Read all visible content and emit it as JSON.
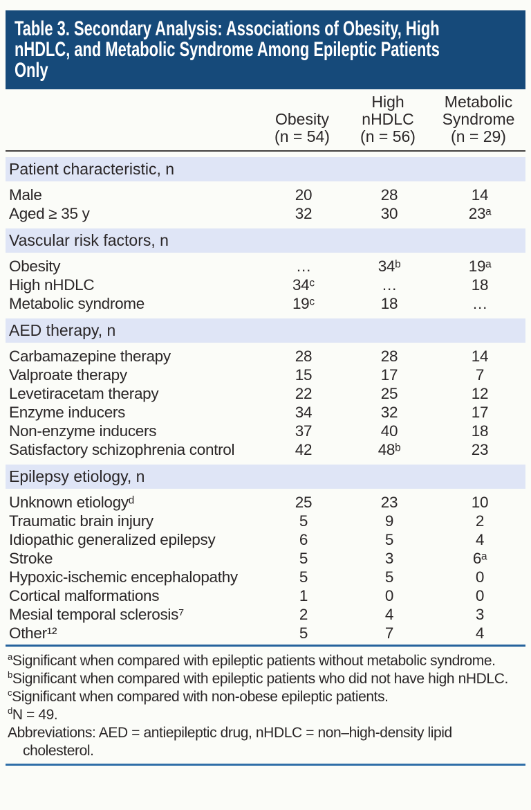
{
  "title_lines": [
    "Table 3. Secondary Analysis: Associations of Obesity, High",
    "nHDLC, and Metabolic Syndrome Among Epileptic Patients",
    "Only"
  ],
  "columns": [
    {
      "label": "Obesity",
      "n": "(n = 54)"
    },
    {
      "label": "High\nnHDLC",
      "n": "(n = 56)"
    },
    {
      "label": "Metabolic\nSyndrome",
      "n": "(n = 29)"
    }
  ],
  "sections": [
    {
      "header": "Patient characteristic, n",
      "rows": [
        {
          "label": "Male",
          "values": [
            "20",
            "28",
            "14"
          ]
        },
        {
          "label": "Aged ≥ 35 y",
          "values": [
            "32",
            "30",
            "23ᵃ"
          ]
        }
      ]
    },
    {
      "header": "Vascular risk factors, n",
      "rows": [
        {
          "label": "Obesity",
          "values": [
            "…",
            "34ᵇ",
            "19ᵃ"
          ]
        },
        {
          "label": "High nHDLC",
          "values": [
            "34ᶜ",
            "…",
            "18"
          ]
        },
        {
          "label": "Metabolic syndrome",
          "values": [
            "19ᶜ",
            "18",
            "…"
          ]
        }
      ]
    },
    {
      "header": "AED therapy, n",
      "rows": [
        {
          "label": "Carbamazepine therapy",
          "values": [
            "28",
            "28",
            "14"
          ]
        },
        {
          "label": "Valproate therapy",
          "values": [
            "15",
            "17",
            "7"
          ]
        },
        {
          "label": "Levetiracetam therapy",
          "values": [
            "22",
            "25",
            "12"
          ]
        },
        {
          "label": "Enzyme inducers",
          "values": [
            "34",
            "32",
            "17"
          ]
        },
        {
          "label": "Non-enzyme inducers",
          "values": [
            "37",
            "40",
            "18"
          ]
        },
        {
          "label": "Satisfactory schizophrenia control",
          "values": [
            "42",
            "48ᵇ",
            "23"
          ]
        }
      ]
    },
    {
      "header": "Epilepsy etiology, n",
      "rows": [
        {
          "label": "Unknown etiologyᵈ",
          "values": [
            "25",
            "23",
            "10"
          ]
        },
        {
          "label": "Traumatic brain injury",
          "values": [
            "5",
            "9",
            "2"
          ]
        },
        {
          "label": "Idiopathic generalized epilepsy",
          "values": [
            "6",
            "5",
            "4"
          ]
        },
        {
          "label": "Stroke",
          "values": [
            "5",
            "3",
            "6ᵃ"
          ]
        },
        {
          "label": "Hypoxic-ischemic encephalopathy",
          "values": [
            "5",
            "5",
            "0"
          ]
        },
        {
          "label": "Cortical malformations",
          "values": [
            "1",
            "0",
            "0"
          ]
        },
        {
          "label": "Mesial temporal sclerosis⁷",
          "values": [
            "2",
            "4",
            "3"
          ]
        },
        {
          "label": "Other¹²",
          "values": [
            "5",
            "7",
            "4"
          ]
        }
      ]
    }
  ],
  "footnotes": [
    {
      "marker": "a",
      "text": "Significant when compared with epileptic patients without metabolic syndrome."
    },
    {
      "marker": "b",
      "text": "Significant when compared with epileptic patients who did not have high nHDLC."
    },
    {
      "marker": "c",
      "text": "Significant when compared with non-obese epileptic patients."
    },
    {
      "marker": "d",
      "text": "N = 49."
    },
    {
      "marker": "",
      "text": "Abbreviations: AED = antiepileptic drug, nHDLC = non–high-density lipid cholesterol."
    }
  ],
  "colors": {
    "title_bg": "#164a7a",
    "band_bg": "#dfe5f6",
    "header_rule": "#413f3e",
    "mid_rule": "#26639d",
    "bottom_rule": "#2f6ea8"
  }
}
